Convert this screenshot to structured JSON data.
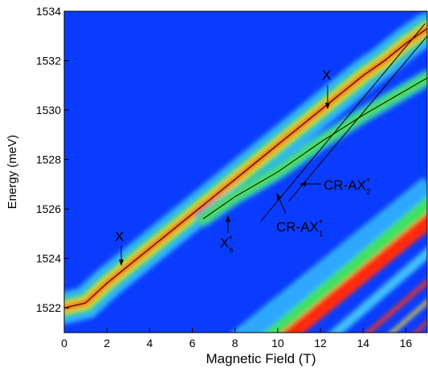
{
  "chart_data": {
    "type": "colormap",
    "xlabel": "Magnetic Field (T)",
    "ylabel": "Energy (meV)",
    "xlim": [
      0,
      17
    ],
    "ylim": [
      1521,
      1534
    ],
    "xticks": [
      0,
      2,
      4,
      6,
      8,
      10,
      12,
      14,
      16
    ],
    "yticks": [
      1522,
      1524,
      1526,
      1528,
      1530,
      1532,
      1534
    ],
    "series": [
      {
        "color": "#000000",
        "x": [
          0,
          1,
          2,
          3,
          4,
          5,
          6,
          7,
          8,
          9,
          10,
          11,
          12,
          13,
          14,
          15,
          16,
          17
        ],
        "values": [
          1522.0,
          1522.2,
          1523.0,
          1523.7,
          1524.4,
          1525.1,
          1525.8,
          1526.5,
          1527.2,
          1527.9,
          1528.6,
          1529.3,
          1530.0,
          1530.7,
          1531.4,
          1532.0,
          1532.7,
          1533.3
        ]
      },
      {
        "color": "#000000",
        "x": [
          6.5,
          8,
          10,
          12,
          14,
          16,
          17
        ],
        "values": [
          1525.6,
          1526.5,
          1527.5,
          1528.7,
          1529.8,
          1530.8,
          1531.3
        ]
      },
      {
        "color": "#000000",
        "x": [
          9.2,
          16.9
        ],
        "values": [
          1525.5,
          1533.5
        ]
      },
      {
        "color": "#000000",
        "x": [
          10.5,
          17
        ],
        "values": [
          1526.3,
          1533.0
        ]
      }
    ],
    "annotations": [
      {
        "text": "X"
      },
      {
        "text": "X"
      },
      {
        "text": "X",
        "sub": "s",
        "sup": "+"
      },
      {
        "text": "CR-AX",
        "sub": "2",
        "sup": "+"
      },
      {
        "text": "CR-AX",
        "sub": "1",
        "sup": "+"
      }
    ]
  }
}
